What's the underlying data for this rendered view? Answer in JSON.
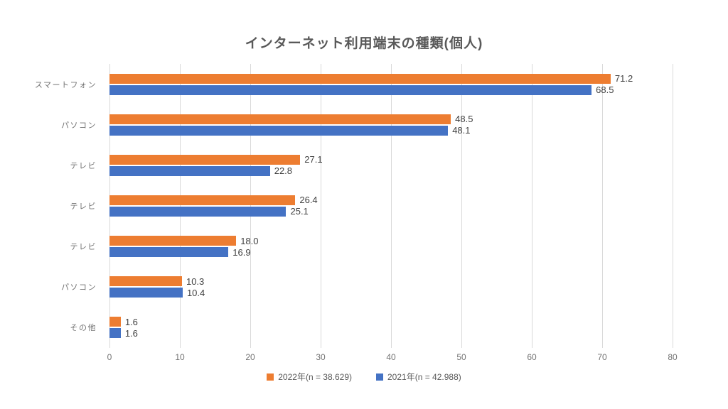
{
  "chart_data": {
    "type": "bar",
    "orientation": "horizontal",
    "title": "インターネット利用端末の種類(個人)",
    "categories": [
      "スマートフォン",
      "パソコン",
      "テレビ",
      "テレビ",
      "テレビ",
      "パソコン",
      "その他"
    ],
    "series": [
      {
        "name": "2022年(n = 38.629)",
        "color": "#ED7D31",
        "values": [
          71.2,
          48.5,
          27.1,
          26.4,
          18.0,
          10.3,
          1.6
        ]
      },
      {
        "name": "2021年(n = 42.988)",
        "color": "#4472C4",
        "values": [
          68.5,
          48.1,
          22.8,
          25.1,
          16.9,
          10.4,
          1.6
        ]
      }
    ],
    "xlim": [
      0,
      80
    ],
    "xticks": [
      0,
      10,
      20,
      30,
      40,
      50,
      60,
      70,
      80
    ],
    "value_label_decimals": 1,
    "grid": true,
    "gridline_color": "#D9D9D9",
    "legend_position": "bottom",
    "colors": {
      "title_text": "#595959",
      "axis_text": "#737373",
      "value_label_text": "#404040",
      "background": "#FFFFFF"
    }
  }
}
